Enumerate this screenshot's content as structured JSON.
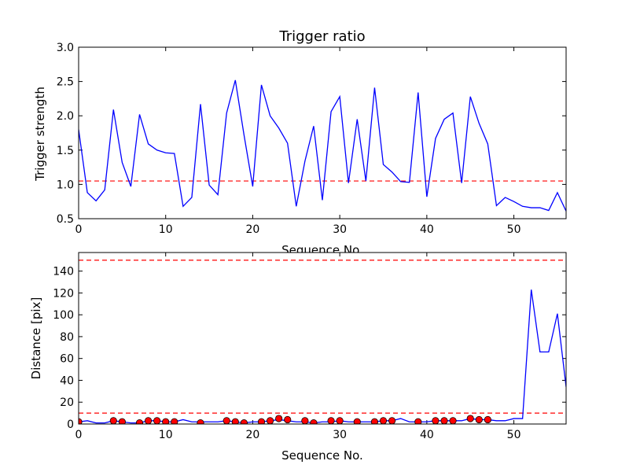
{
  "chart_data": [
    {
      "type": "line",
      "title": "Trigger ratio",
      "xlabel": "Sequence No.",
      "ylabel": "Trigger strength",
      "xlim": [
        0,
        56
      ],
      "ylim": [
        0.5,
        3.0
      ],
      "xticks": [
        "0",
        "10",
        "20",
        "30",
        "40",
        "50"
      ],
      "yticks": [
        "0.5",
        "1.0",
        "1.5",
        "2.0",
        "2.5",
        "3.0"
      ],
      "grid": false,
      "series": [
        {
          "color": "#0000ff",
          "x": [
            0,
            1,
            2,
            3,
            4,
            5,
            6,
            7,
            8,
            9,
            10,
            11,
            12,
            13,
            14,
            15,
            16,
            17,
            18,
            19,
            20,
            21,
            22,
            23,
            24,
            25,
            26,
            27,
            28,
            29,
            30,
            31,
            32,
            33,
            34,
            35,
            36,
            37,
            38,
            39,
            40,
            41,
            42,
            43,
            44,
            45,
            46,
            47,
            48,
            49,
            50,
            51,
            52,
            53,
            54,
            55,
            56
          ],
          "y": [
            1.8,
            0.88,
            0.76,
            0.92,
            2.09,
            1.32,
            0.97,
            2.02,
            1.59,
            1.5,
            1.46,
            1.45,
            0.68,
            0.81,
            2.17,
            0.99,
            0.85,
            2.04,
            2.52,
            1.72,
            0.97,
            2.45,
            2.0,
            1.82,
            1.6,
            0.68,
            1.34,
            1.85,
            0.77,
            2.06,
            2.28,
            1.02,
            1.95,
            1.05,
            2.41,
            1.29,
            1.18,
            1.04,
            1.03,
            2.34,
            0.82,
            1.67,
            1.95,
            2.04,
            1.02,
            2.28,
            1.89,
            1.59,
            0.69,
            0.81,
            0.75,
            0.68,
            0.66,
            0.66,
            0.62,
            0.88,
            0.61
          ]
        }
      ],
      "hlines": [
        {
          "y": 1.05,
          "color": "#ff0000",
          "style": "dashed"
        }
      ]
    },
    {
      "type": "line",
      "title": "",
      "xlabel": "Sequence No.",
      "ylabel": "Distance [pix]",
      "xlim": [
        0,
        56
      ],
      "ylim": [
        0,
        157
      ],
      "xticks": [
        "0",
        "10",
        "20",
        "30",
        "40",
        "50"
      ],
      "yticks": [
        "0",
        "20",
        "40",
        "60",
        "80",
        "100",
        "120",
        "140"
      ],
      "grid": false,
      "series": [
        {
          "color": "#0000ff",
          "x": [
            0,
            1,
            2,
            3,
            4,
            5,
            6,
            7,
            8,
            9,
            10,
            11,
            12,
            13,
            14,
            15,
            16,
            17,
            18,
            19,
            20,
            21,
            22,
            23,
            24,
            25,
            26,
            27,
            28,
            29,
            30,
            31,
            32,
            33,
            34,
            35,
            36,
            37,
            38,
            39,
            40,
            41,
            42,
            43,
            44,
            45,
            46,
            47,
            48,
            49,
            50,
            51,
            52,
            53,
            54,
            55,
            56
          ],
          "y": [
            2,
            3,
            1,
            1,
            3,
            2,
            1,
            1,
            3,
            3,
            2,
            2,
            4,
            2,
            2,
            2,
            2,
            3,
            2,
            1,
            2,
            2,
            3,
            4,
            3,
            2,
            2,
            1,
            2,
            2,
            3,
            2,
            2,
            2,
            2,
            3,
            3,
            5,
            2,
            2,
            2,
            3,
            3,
            3,
            3,
            5,
            4,
            4,
            3,
            3,
            5,
            5,
            123,
            66,
            66,
            101,
            34
          ]
        }
      ],
      "markers": {
        "color": "#ff0000",
        "x": [
          0,
          4,
          5,
          7,
          8,
          9,
          10,
          11,
          14,
          17,
          18,
          19,
          21,
          22,
          23,
          24,
          26,
          27,
          29,
          30,
          32,
          34,
          35,
          36,
          39,
          41,
          42,
          43,
          45,
          46,
          47
        ],
        "y": [
          2,
          3,
          2,
          1,
          3,
          3,
          2,
          2,
          1,
          3,
          2,
          1,
          2,
          3,
          5,
          4,
          3,
          1,
          3,
          3,
          2,
          2,
          3,
          3,
          2,
          3,
          3,
          3,
          5,
          4,
          4
        ]
      },
      "hlines": [
        {
          "y": 150,
          "color": "#ff0000",
          "style": "dashed"
        },
        {
          "y": 10,
          "color": "#ff0000",
          "style": "dashed"
        }
      ]
    }
  ]
}
